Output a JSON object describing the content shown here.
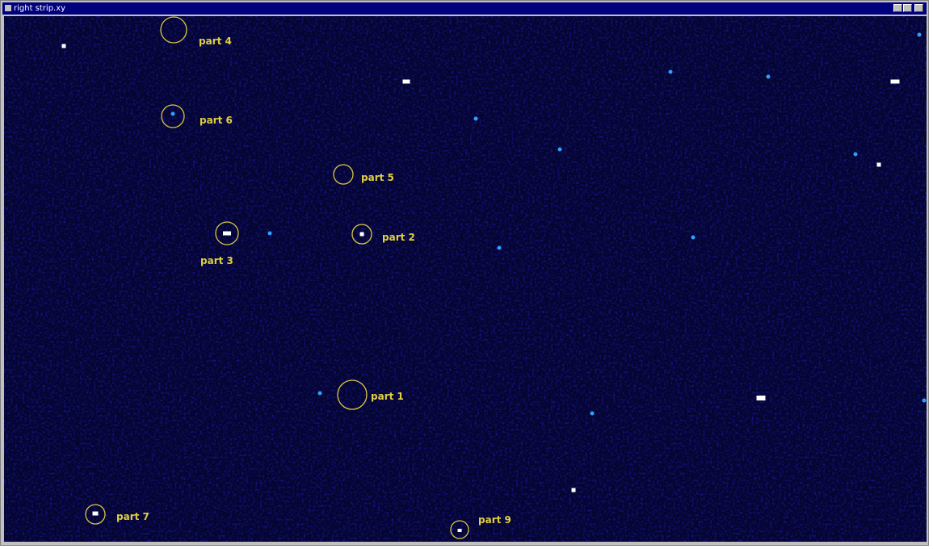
{
  "window": {
    "title": "right strip.xy"
  },
  "labels": [
    "part 4",
    "part 6",
    "part 5",
    "part 3",
    "part 2",
    "part 1",
    "part 7",
    "part 9"
  ]
}
